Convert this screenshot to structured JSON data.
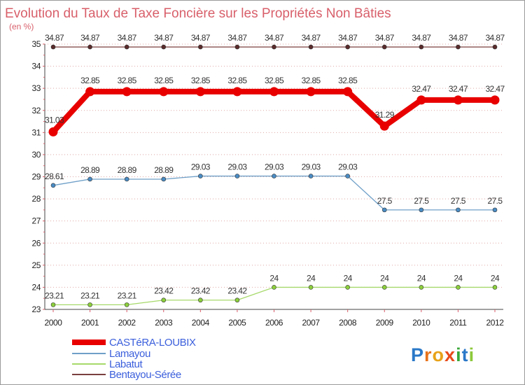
{
  "chart_data": {
    "type": "line",
    "title": "Evolution du Taux de Taxe Foncière sur les Propriétés Non Bâties",
    "unit_label": "(en %)",
    "xlabel": "",
    "ylabel": "(en %)",
    "ylim": [
      23,
      35
    ],
    "yticks": [
      23,
      24,
      25,
      26,
      27,
      28,
      29,
      30,
      31,
      32,
      33,
      34,
      35
    ],
    "categories": [
      "2000",
      "2001",
      "2002",
      "2003",
      "2004",
      "2005",
      "2006",
      "2007",
      "2008",
      "2009",
      "2010",
      "2011",
      "2012"
    ],
    "series": [
      {
        "name": "CASTéRA-LOUBIX",
        "color": "#e80000",
        "values": [
          31.03,
          32.85,
          32.85,
          32.85,
          32.85,
          32.85,
          32.85,
          32.85,
          32.85,
          31.29,
          32.47,
          32.47,
          32.47
        ],
        "labels": [
          "31.03",
          "32.85",
          "32.85",
          "32.85",
          "32.85",
          "32.85",
          "32.85",
          "32.85",
          "32.85",
          "31.29",
          "32.47",
          "32.47",
          "32.47"
        ]
      },
      {
        "name": "Lamayou",
        "color": "#6fa0c8",
        "marker_color": "#4a8cc4",
        "values": [
          28.61,
          28.89,
          28.89,
          28.89,
          29.03,
          29.03,
          29.03,
          29.03,
          29.03,
          27.5,
          27.5,
          27.5,
          27.5
        ],
        "labels": [
          "28.61",
          "28.89",
          "28.89",
          "28.89",
          "29.03",
          "29.03",
          "29.03",
          "29.03",
          "29.03",
          "27.5",
          "27.5",
          "27.5",
          "27.5"
        ]
      },
      {
        "name": "Labatut",
        "color": "#a6d96a",
        "marker_color": "#8ccf3c",
        "values": [
          23.21,
          23.21,
          23.21,
          23.42,
          23.42,
          23.42,
          24,
          24,
          24,
          24,
          24,
          24,
          24
        ],
        "labels": [
          "23.21",
          "23.21",
          "23.21",
          "23.42",
          "23.42",
          "23.42",
          "24",
          "24",
          "24",
          "24",
          "24",
          "24",
          "24"
        ]
      },
      {
        "name": "Bentayou-Sérée",
        "color": "#7b3f3f",
        "marker_color": "#5a2a2a",
        "values": [
          34.87,
          34.87,
          34.87,
          34.87,
          34.87,
          34.87,
          34.87,
          34.87,
          34.87,
          34.87,
          34.87,
          34.87,
          34.87
        ],
        "labels": [
          "34.87",
          "34.87",
          "34.87",
          "34.87",
          "34.87",
          "34.87",
          "34.87",
          "34.87",
          "34.87",
          "34.87",
          "34.87",
          "34.87",
          "34.87"
        ]
      }
    ],
    "legend_position": "bottom-left",
    "grid": "horizontal-dotted"
  },
  "logo": {
    "text": "Proxiti",
    "letters": [
      {
        "ch": "P",
        "color": "#2a78c8"
      },
      {
        "ch": "r",
        "color": "#e8731a"
      },
      {
        "ch": "o",
        "color": "#e8a31a"
      },
      {
        "ch": "x",
        "color": "#e84a1a"
      },
      {
        "ch": "i",
        "color": "#3aa83a"
      },
      {
        "ch": "t",
        "color": "#2a78c8"
      },
      {
        "ch": "i",
        "color": "#8cc83a"
      }
    ]
  }
}
